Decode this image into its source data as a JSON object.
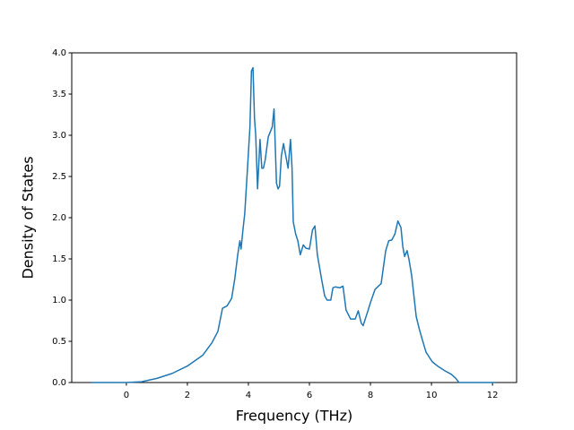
{
  "chart_data": {
    "type": "line",
    "xlabel": "Frequency (THz)",
    "ylabel": "Density of States",
    "xlim": [
      -1.79,
      12.79
    ],
    "ylim": [
      0,
      4.0
    ],
    "xticks": [
      0,
      2,
      4,
      6,
      8,
      10,
      12
    ],
    "yticks": [
      {
        "value": 0,
        "label": "0.0"
      },
      {
        "value": 0.5,
        "label": "0.5"
      },
      {
        "value": 1,
        "label": "1.0"
      },
      {
        "value": 1.5,
        "label": "1.5"
      },
      {
        "value": 2,
        "label": "2.0"
      },
      {
        "value": 2.5,
        "label": "2.5"
      },
      {
        "value": 3,
        "label": "3.0"
      },
      {
        "value": 3.5,
        "label": "3.5"
      },
      {
        "value": 4,
        "label": "4.0"
      }
    ],
    "series": [
      {
        "color": "#1f77b4",
        "x": [
          -1.15,
          0,
          0.5,
          1,
          1.5,
          2,
          2.5,
          2.8,
          3.0,
          3.15,
          3.3,
          3.45,
          3.55,
          3.65,
          3.72,
          3.76,
          3.82,
          3.88,
          3.97,
          4.05,
          4.1,
          4.15,
          4.2,
          4.24,
          4.3,
          4.38,
          4.44,
          4.49,
          4.55,
          4.65,
          4.78,
          4.84,
          4.92,
          4.97,
          5.02,
          5.08,
          5.15,
          5.2,
          5.3,
          5.38,
          5.43,
          5.47,
          5.55,
          5.62,
          5.7,
          5.8,
          5.88,
          6.0,
          6.1,
          6.18,
          6.26,
          6.4,
          6.5,
          6.58,
          6.7,
          6.77,
          6.85,
          7.0,
          7.1,
          7.2,
          7.35,
          7.5,
          7.6,
          7.7,
          7.76,
          7.9,
          8.0,
          8.15,
          8.35,
          8.5,
          8.6,
          8.7,
          8.8,
          8.9,
          9.0,
          9.06,
          9.12,
          9.2,
          9.26,
          9.35,
          9.44,
          9.5,
          9.6,
          9.7,
          9.82,
          9.94,
          10.03,
          10.2,
          10.45,
          10.65,
          10.8,
          10.9,
          11.03,
          12.1
        ],
        "values": [
          0,
          0,
          0.01,
          0.05,
          0.11,
          0.2,
          0.33,
          0.48,
          0.62,
          0.9,
          0.93,
          1.02,
          1.25,
          1.55,
          1.72,
          1.62,
          1.85,
          2.05,
          2.6,
          3.1,
          3.78,
          3.82,
          3.2,
          3.0,
          2.35,
          2.95,
          2.6,
          2.6,
          2.7,
          2.98,
          3.1,
          3.32,
          2.42,
          2.35,
          2.38,
          2.75,
          2.9,
          2.8,
          2.6,
          2.95,
          2.6,
          1.95,
          1.8,
          1.72,
          1.55,
          1.67,
          1.63,
          1.62,
          1.85,
          1.9,
          1.55,
          1.25,
          1.05,
          1.0,
          1.0,
          1.15,
          1.16,
          1.15,
          1.17,
          0.88,
          0.77,
          0.77,
          0.87,
          0.72,
          0.69,
          0.85,
          0.97,
          1.13,
          1.2,
          1.6,
          1.72,
          1.73,
          1.8,
          1.96,
          1.88,
          1.65,
          1.53,
          1.6,
          1.5,
          1.3,
          1.0,
          0.8,
          0.65,
          0.52,
          0.37,
          0.3,
          0.25,
          0.2,
          0.14,
          0.1,
          0.05,
          0,
          0,
          0
        ]
      }
    ]
  }
}
